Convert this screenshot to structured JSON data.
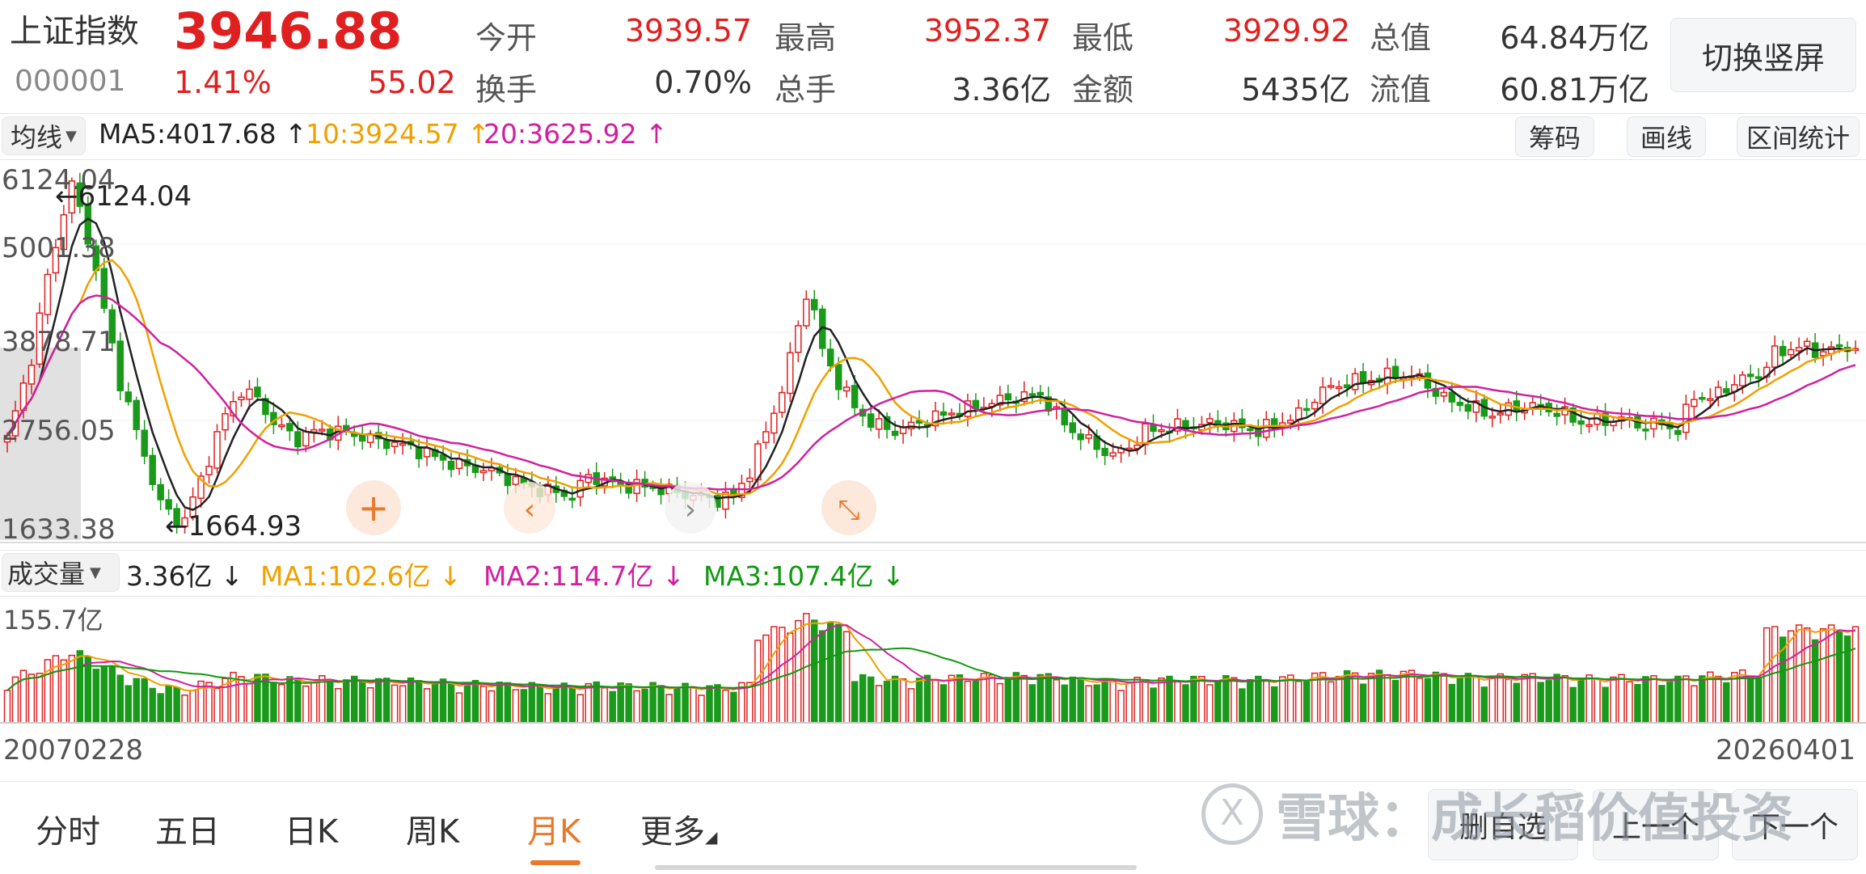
{
  "header": {
    "name": "上证指数",
    "price": "3946.88",
    "code": "000001",
    "change_pct": "1.41%",
    "change_abs": "55.02",
    "stats": [
      {
        "label": "今开",
        "value": "3939.57",
        "color": "#e02020"
      },
      {
        "label": "最高",
        "value": "3952.37",
        "color": "#e02020"
      },
      {
        "label": "最低",
        "value": "3929.92",
        "color": "#e02020"
      },
      {
        "label": "总值",
        "value": "64.84万亿",
        "color": "#333333"
      },
      {
        "label": "换手",
        "value": "0.70%",
        "color": "#333333"
      },
      {
        "label": "总手",
        "value": "3.36亿",
        "color": "#333333"
      },
      {
        "label": "金额",
        "value": "5435亿",
        "color": "#333333"
      },
      {
        "label": "流值",
        "value": "60.81万亿",
        "color": "#333333"
      }
    ],
    "switch_button": "切换竖屏"
  },
  "ma_bar": {
    "selector": "均线",
    "items": [
      {
        "text": "MA5:4017.68 ↑",
        "color": "#222222"
      },
      {
        "text": "10:3924.57 ↑",
        "color": "#f0a000"
      },
      {
        "text": "20:3625.92 ↑",
        "color": "#d020a0"
      }
    ],
    "buttons": [
      "筹码",
      "画线",
      "区间统计"
    ]
  },
  "price_chart": {
    "axis_labels": [
      "6124.04",
      "5001.38",
      "3878.71",
      "2756.05",
      "1633.38"
    ],
    "high_marker": "←6124.04",
    "low_marker": "←1664.93"
  },
  "volume_bar": {
    "selector": "成交量",
    "items": [
      {
        "text": "3.36亿 ↓",
        "color": "#222222"
      },
      {
        "text": "MA1:102.6亿 ↓",
        "color": "#f0a000"
      },
      {
        "text": "MA2:114.7亿 ↓",
        "color": "#d020a0"
      },
      {
        "text": "MA3:107.4亿 ↓",
        "color": "#119911"
      }
    ],
    "axis_label": "155.7亿"
  },
  "dates": {
    "start": "20070228",
    "end": "20260401"
  },
  "tabs": [
    "分时",
    "五日",
    "日K",
    "周K",
    "月K",
    "更多"
  ],
  "active_tab": "月K",
  "bottom_buttons": [
    "删自选",
    "上一个",
    "下一个"
  ],
  "watermark": "雪球：成长稻价值投资",
  "colors": {
    "up": "#e02020",
    "down": "#1a9a1a",
    "accent": "#e8782a"
  },
  "chart_data": {
    "type": "candlestick",
    "x_range": [
      "2007-02",
      "2026-04"
    ],
    "ylim": [
      1633.38,
      6124.04
    ],
    "close_anchors": [
      [
        0,
        2800
      ],
      [
        3,
        3800
      ],
      [
        5,
        4800
      ],
      [
        7,
        5600
      ],
      [
        8,
        5950
      ],
      [
        10,
        5300
      ],
      [
        12,
        4400
      ],
      [
        14,
        3500
      ],
      [
        17,
        2600
      ],
      [
        19,
        2000
      ],
      [
        21,
        1800
      ],
      [
        22,
        1820
      ],
      [
        24,
        2300
      ],
      [
        27,
        3100
      ],
      [
        29,
        3400
      ],
      [
        31,
        3300
      ],
      [
        33,
        3000
      ],
      [
        36,
        2800
      ],
      [
        38,
        2900
      ],
      [
        42,
        2880
      ],
      [
        45,
        2800
      ],
      [
        50,
        2700
      ],
      [
        55,
        2500
      ],
      [
        60,
        2400
      ],
      [
        65,
        2200
      ],
      [
        70,
        2100
      ],
      [
        72,
        2350
      ],
      [
        75,
        2250
      ],
      [
        80,
        2200
      ],
      [
        85,
        2100
      ],
      [
        88,
        2050
      ],
      [
        90,
        2100
      ],
      [
        92,
        2400
      ],
      [
        94,
        2900
      ],
      [
        96,
        3400
      ],
      [
        98,
        4200
      ],
      [
        99,
        4600
      ],
      [
        100,
        4350
      ],
      [
        101,
        3900
      ],
      [
        103,
        3500
      ],
      [
        105,
        3200
      ],
      [
        107,
        3000
      ],
      [
        110,
        2900
      ],
      [
        113,
        3000
      ],
      [
        116,
        3100
      ],
      [
        120,
        3200
      ],
      [
        124,
        3300
      ],
      [
        128,
        3350
      ],
      [
        130,
        3100
      ],
      [
        132,
        2900
      ],
      [
        135,
        2700
      ],
      [
        137,
        2600
      ],
      [
        139,
        2700
      ],
      [
        141,
        2900
      ],
      [
        145,
        2950
      ],
      [
        150,
        3000
      ],
      [
        155,
        2900
      ],
      [
        160,
        3100
      ],
      [
        163,
        3400
      ],
      [
        166,
        3500
      ],
      [
        170,
        3550
      ],
      [
        172,
        3600
      ],
      [
        175,
        3550
      ],
      [
        178,
        3300
      ],
      [
        181,
        3200
      ],
      [
        184,
        3100
      ],
      [
        187,
        3200
      ],
      [
        190,
        3200
      ],
      [
        193,
        3100
      ],
      [
        195,
        3000
      ],
      [
        200,
        3050
      ],
      [
        203,
        2950
      ],
      [
        205,
        3000
      ],
      [
        207,
        2900
      ],
      [
        209,
        3350
      ],
      [
        211,
        3300
      ],
      [
        214,
        3500
      ],
      [
        217,
        3600
      ],
      [
        219,
        3850
      ],
      [
        222,
        3950
      ],
      [
        224,
        3880
      ],
      [
        229,
        3946.88
      ]
    ]
  }
}
